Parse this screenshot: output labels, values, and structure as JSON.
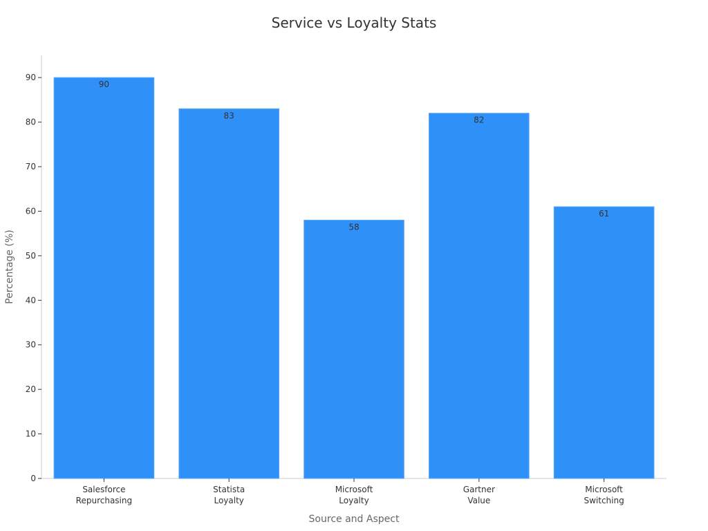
{
  "chart_data": {
    "type": "bar",
    "title": "Service vs Loyalty Stats",
    "xlabel": "Source and Aspect",
    "ylabel": "Percentage (%)",
    "categories": [
      [
        "Salesforce",
        "Repurchasing"
      ],
      [
        "Statista",
        "Loyalty"
      ],
      [
        "Microsoft",
        "Loyalty"
      ],
      [
        "Gartner",
        "Value"
      ],
      [
        "Microsoft",
        "Switching"
      ]
    ],
    "values": [
      90,
      83,
      58,
      82,
      61
    ],
    "ylim": [
      0,
      95
    ],
    "yticks": [
      0,
      10,
      20,
      30,
      40,
      50,
      60,
      70,
      80,
      90
    ],
    "bar_color": "#2F90F8",
    "grid": false,
    "legend": "none"
  }
}
